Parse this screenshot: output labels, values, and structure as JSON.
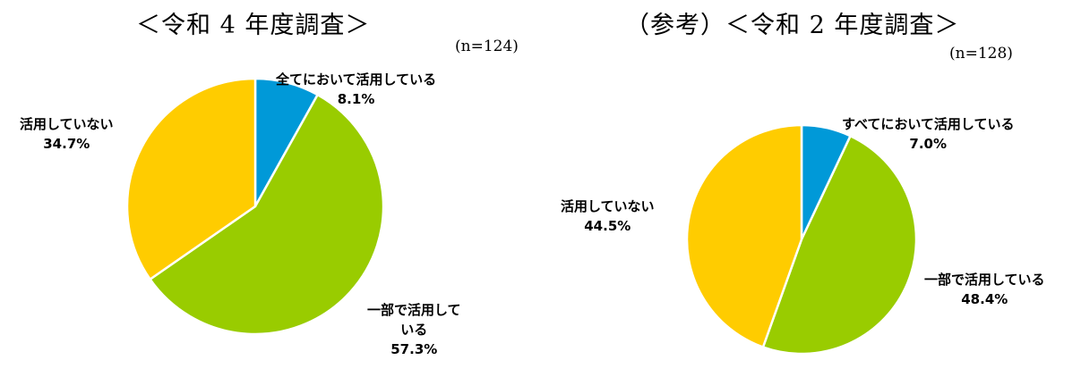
{
  "chart_data": [
    {
      "type": "pie",
      "title": "＜令和 4 年度調査＞",
      "n": "(n=124)",
      "slices": [
        {
          "label": "全てにおいて活用している",
          "value": 8.1,
          "value_label": "8.1%",
          "color": "#0099d8"
        },
        {
          "label": "一部で活用している",
          "label_lines": [
            "一部で活用して",
            "いる"
          ],
          "value": 57.3,
          "value_label": "57.3%",
          "color": "#99cc00"
        },
        {
          "label": "活用していない",
          "value": 34.7,
          "value_label": "34.7%",
          "color": "#ffcc00"
        }
      ]
    },
    {
      "type": "pie",
      "title": "（参考）＜令和 2 年度調査＞",
      "n": "(n=128)",
      "slices": [
        {
          "label": "すべてにおいて活用している",
          "value": 7.0,
          "value_label": "7.0%",
          "color": "#0099d8"
        },
        {
          "label": "一部で活用している",
          "value": 48.4,
          "value_label": "48.4%",
          "color": "#99cc00"
        },
        {
          "label": "活用していない",
          "value": 44.5,
          "value_label": "44.5%",
          "color": "#ffcc00"
        }
      ]
    }
  ]
}
